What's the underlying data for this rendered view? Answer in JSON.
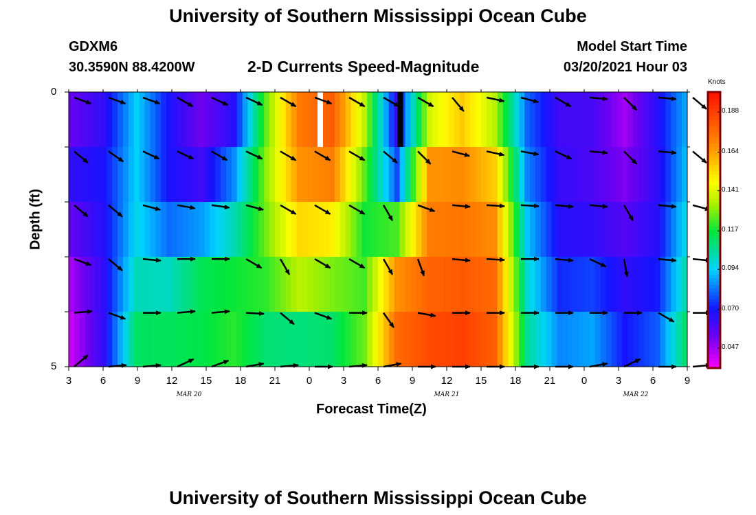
{
  "header": {
    "title": "University of Southern Mississippi Ocean Cube",
    "station": "GDXM6",
    "location": "30.3590N 88.4200W",
    "subtitle": "2-D Currents Speed-Magnitude",
    "model_start_label": "Model Start Time",
    "model_start_value": "03/20/2021 Hour 03"
  },
  "footer": {
    "title": "University of Southern Mississippi Ocean Cube"
  },
  "colors": {
    "background": "#ffffff",
    "text": "#000000",
    "colorbar_border": "#800000"
  },
  "chart_data": {
    "type": "heatmap",
    "title": "2-D Currents Speed-Magnitude",
    "xlabel": "Forecast Time(Z)",
    "ylabel": "Depth (ft)",
    "x_tick_labels": [
      "3",
      "6",
      "9",
      "12",
      "15",
      "18",
      "21",
      "0",
      "3",
      "6",
      "9",
      "12",
      "15",
      "18",
      "21",
      "0",
      "3",
      "6",
      "9"
    ],
    "date_labels": [
      {
        "label": "MAR 20",
        "at_tick": 3.5
      },
      {
        "label": "MAR 21",
        "at_tick": 11
      },
      {
        "label": "MAR 22",
        "at_tick": 16.5
      }
    ],
    "y_tick_labels": [
      "0",
      "5"
    ],
    "ylim": [
      0,
      5
    ],
    "depth_rows": 5,
    "colorbar": {
      "label": "Knots",
      "ticks": [
        "0.188",
        "0.164",
        "0.141",
        "0.117",
        "0.094",
        "0.070",
        "0.047"
      ],
      "range": [
        0.035,
        0.2
      ]
    },
    "speed_rows": [
      [
        0.045,
        0.062,
        0.096,
        0.07,
        0.048,
        0.058,
        0.128,
        0.176,
        0.183,
        0.141,
        0.062,
        0.116,
        0.146,
        0.122,
        0.082,
        0.062,
        0.063,
        0.045,
        0.07,
        0.094
      ],
      [
        0.068,
        0.07,
        0.094,
        0.07,
        0.061,
        0.078,
        0.128,
        0.172,
        0.181,
        0.133,
        0.068,
        0.164,
        0.168,
        0.15,
        0.08,
        0.064,
        0.062,
        0.05,
        0.066,
        0.092
      ],
      [
        0.064,
        0.07,
        0.096,
        0.07,
        0.066,
        0.094,
        0.136,
        0.164,
        0.165,
        0.12,
        0.088,
        0.171,
        0.172,
        0.163,
        0.09,
        0.066,
        0.06,
        0.055,
        0.066,
        0.1
      ],
      [
        0.05,
        0.067,
        0.098,
        0.094,
        0.11,
        0.112,
        0.122,
        0.145,
        0.135,
        0.118,
        0.161,
        0.176,
        0.179,
        0.176,
        0.096,
        0.07,
        0.072,
        0.064,
        0.07,
        0.104
      ],
      [
        0.045,
        0.066,
        0.108,
        0.11,
        0.12,
        0.125,
        0.122,
        0.128,
        0.124,
        0.13,
        0.176,
        0.184,
        0.186,
        0.18,
        0.104,
        0.078,
        0.082,
        0.068,
        0.074,
        0.114
      ],
      [
        0.04,
        0.066,
        0.118,
        0.118,
        0.112,
        0.118,
        0.1,
        0.092,
        0.1,
        0.126,
        0.18,
        0.188,
        0.192,
        0.182,
        0.11,
        0.092,
        0.096,
        0.074,
        0.086,
        0.12
      ]
    ],
    "vectors": [
      [
        -20,
        -20,
        -20,
        -30,
        -25,
        -25,
        -30,
        -20,
        -30,
        -30,
        -30,
        -50,
        -12,
        -15,
        -30,
        -5,
        -45,
        -5,
        -40
      ],
      [
        -40,
        -35,
        -25,
        -25,
        -30,
        -25,
        -30,
        -30,
        -30,
        -40,
        -45,
        -15,
        -12,
        -10,
        -25,
        -5,
        -45,
        -5,
        -40
      ],
      [
        -40,
        -40,
        -15,
        -10,
        -8,
        -15,
        -30,
        -30,
        -30,
        -60,
        -20,
        -5,
        -3,
        -3,
        -5,
        -5,
        -60,
        -5,
        -15
      ],
      [
        -20,
        -40,
        -5,
        0,
        0,
        -30,
        -60,
        -30,
        -30,
        -60,
        -70,
        -5,
        -3,
        0,
        -5,
        -25,
        -80,
        -5,
        -5
      ],
      [
        5,
        -20,
        0,
        5,
        5,
        -3,
        -40,
        -20,
        0,
        -55,
        -10,
        0,
        0,
        0,
        0,
        0,
        0,
        -30,
        0
      ],
      [
        40,
        5,
        5,
        25,
        20,
        10,
        5,
        0,
        5,
        10,
        0,
        0,
        0,
        0,
        0,
        10,
        25,
        0,
        5
      ]
    ],
    "markers": [
      {
        "tick": 7.32,
        "row": 0,
        "color": "#ffffff"
      },
      {
        "tick": 9.65,
        "row": 0,
        "color": "#000000"
      }
    ]
  }
}
